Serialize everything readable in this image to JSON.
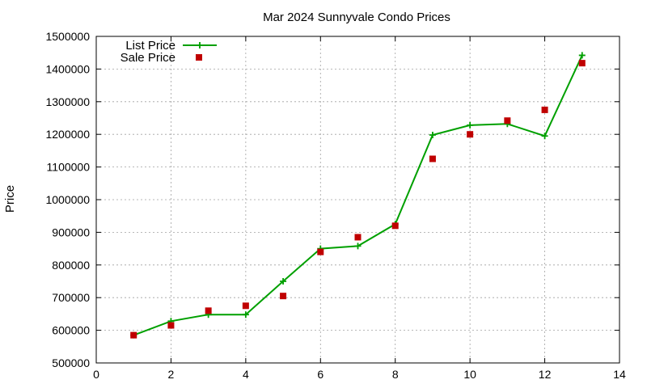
{
  "chart_data": {
    "type": "line",
    "title": "Mar 2024 Sunnyvale Condo Prices",
    "xlabel": "",
    "ylabel": "Price",
    "xlim": [
      0,
      14
    ],
    "ylim": [
      500000,
      1500000
    ],
    "xticks": [
      0,
      2,
      4,
      6,
      8,
      10,
      12,
      14
    ],
    "yticks": [
      500000,
      600000,
      700000,
      800000,
      900000,
      1000000,
      1100000,
      1200000,
      1300000,
      1400000,
      1500000
    ],
    "grid": true,
    "legend_position": "top-left",
    "series": [
      {
        "name": "List Price",
        "style": "line-with-plus-markers",
        "color": "#00a000",
        "x": [
          1,
          2,
          3,
          4,
          5,
          6,
          7,
          8,
          9,
          10,
          11,
          12,
          13
        ],
        "y": [
          585000,
          628000,
          648000,
          648000,
          750000,
          850000,
          858000,
          925000,
          1198000,
          1228000,
          1232000,
          1195000,
          1442000
        ]
      },
      {
        "name": "Sale Price",
        "style": "square-markers",
        "color": "#c00000",
        "x": [
          1,
          2,
          3,
          4,
          5,
          6,
          7,
          8,
          9,
          10,
          11,
          12,
          13
        ],
        "y": [
          585000,
          615000,
          660000,
          675000,
          705000,
          840000,
          885000,
          920000,
          1125000,
          1200000,
          1242000,
          1275000,
          1418000
        ]
      }
    ]
  }
}
